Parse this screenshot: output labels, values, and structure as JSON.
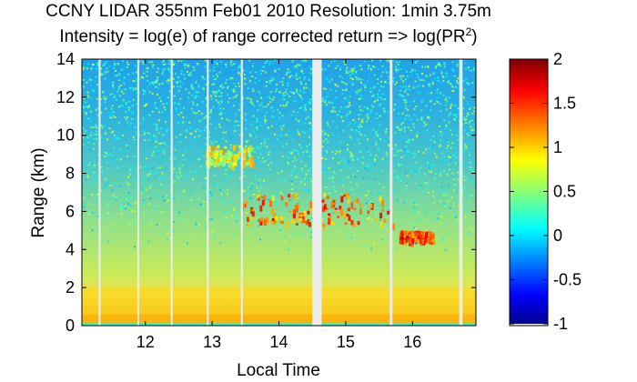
{
  "header": {
    "title_line1": "CCNY LIDAR 355nm Feb01 2010 Resolution: 1min 3.75m",
    "title_line2_prefix": "Intensity = log(e) of range corrected return => log(PR",
    "title_line2_sup": "2",
    "title_line2_suffix": ")"
  },
  "chart_data": {
    "type": "heatmap",
    "title": "CCNY LIDAR 355nm Feb01 2010 Resolution: 1min 3.75m",
    "subtitle": "Intensity = log(e) of range corrected return => log(PR²)",
    "xlabel": "Local Time",
    "ylabel": "Range (km)",
    "xlim": [
      11.05,
      16.95
    ],
    "ylim": [
      0,
      14
    ],
    "x_ticks": [
      12,
      13,
      14,
      15,
      16
    ],
    "y_ticks": [
      0,
      2,
      4,
      6,
      8,
      10,
      12,
      14
    ],
    "colorbar": {
      "range": [
        -1,
        2
      ],
      "ticks": [
        -1,
        -0.5,
        0,
        0.5,
        1,
        1.5,
        2
      ],
      "tick_labels": [
        "-1",
        "-0.5",
        "0",
        "0.5",
        "1",
        "1.5",
        "2"
      ],
      "colormap": "jet"
    },
    "data_gaps_local_time": [
      [
        11.3,
        11.33
      ],
      [
        11.88,
        11.9
      ],
      [
        12.38,
        12.41
      ],
      [
        12.92,
        12.95
      ],
      [
        13.43,
        13.46
      ],
      [
        14.5,
        14.64
      ],
      [
        15.66,
        15.7
      ],
      [
        16.7,
        16.75
      ]
    ],
    "features": [
      {
        "name": "surface layer",
        "range_km": [
          0,
          2
        ],
        "value": 1.0
      },
      {
        "name": "boundary layer base",
        "range_km": [
          0,
          0.6
        ],
        "value": 1.15
      },
      {
        "name": "elevated aerosol/cloud layer",
        "time": [
          13.4,
          15.7
        ],
        "range_km": [
          5.3,
          7.0
        ],
        "value": 1.4
      },
      {
        "name": "upper layer",
        "time": [
          12.9,
          13.6
        ],
        "range_km": [
          8.5,
          9.5
        ],
        "value": 0.9
      },
      {
        "name": "isolated feature",
        "time": [
          15.8,
          16.3
        ],
        "range_km": [
          4.5,
          5.0
        ],
        "value": 1.5
      }
    ]
  }
}
